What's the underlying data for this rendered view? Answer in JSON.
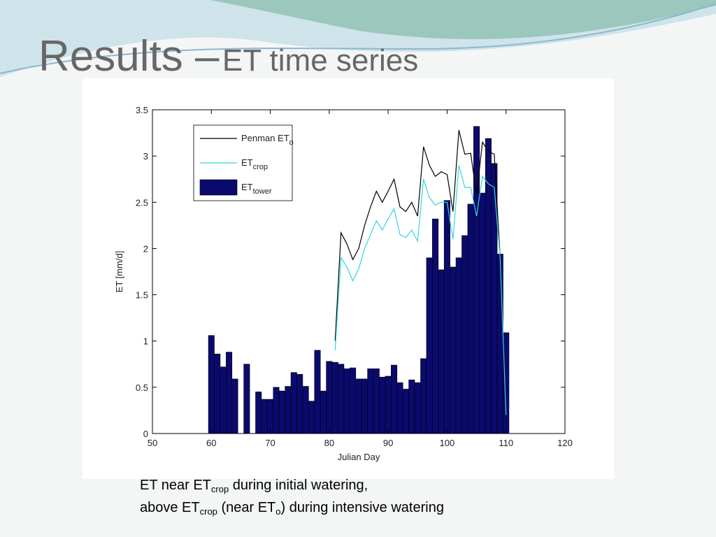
{
  "slide": {
    "title": "Results –",
    "title_rest": "ET time series",
    "caption": [
      [
        "ET near ET",
        "crop",
        " during initial watering,"
      ],
      [
        "above ET",
        "crop",
        " (near ET",
        "o",
        ") during intensive watering"
      ]
    ]
  },
  "chart_data": {
    "type": "bar",
    "xlabel": "Julian Day",
    "ylabel": "ET [mm/d]",
    "xlim": [
      50,
      120
    ],
    "xticks": [
      50,
      60,
      70,
      80,
      90,
      100,
      110,
      120
    ],
    "ylim": [
      0,
      3.5
    ],
    "yticks": [
      0,
      0.5,
      1,
      1.5,
      2,
      2.5,
      3,
      3.5
    ],
    "legend": "upper left",
    "series": [
      {
        "name": "Penman ET",
        "name_sub": "o",
        "type": "line",
        "color": "#000000",
        "x": [
          81,
          82,
          83,
          84,
          85,
          86,
          87,
          88,
          89,
          90,
          91,
          92,
          93,
          94,
          95,
          96,
          97,
          98,
          99,
          100,
          101,
          102,
          103,
          104,
          105,
          106,
          107,
          108,
          109
        ],
        "values": [
          1.0,
          2.17,
          2.05,
          1.88,
          2.0,
          2.25,
          2.45,
          2.62,
          2.5,
          2.62,
          2.75,
          2.45,
          2.4,
          2.5,
          2.35,
          3.1,
          2.9,
          2.78,
          2.83,
          2.8,
          2.4,
          3.28,
          3.02,
          3.03,
          2.58,
          3.15,
          3.05,
          3.02,
          1.9
        ]
      },
      {
        "name": "ET",
        "name_sub": "crop",
        "type": "line",
        "color": "#33d6e0",
        "x": [
          81,
          82,
          83,
          84,
          85,
          86,
          87,
          88,
          89,
          90,
          91,
          92,
          93,
          94,
          95,
          96,
          97,
          98,
          99,
          100,
          101,
          102,
          103,
          104,
          105,
          106,
          107,
          108,
          109,
          110
        ],
        "values": [
          0.9,
          1.9,
          1.8,
          1.65,
          1.78,
          2.0,
          2.15,
          2.3,
          2.2,
          2.32,
          2.43,
          2.15,
          2.12,
          2.2,
          2.08,
          2.75,
          2.55,
          2.47,
          2.5,
          2.5,
          2.1,
          2.9,
          2.66,
          2.66,
          2.35,
          2.78,
          2.7,
          2.66,
          1.9,
          0.2
        ]
      },
      {
        "name": "ET",
        "name_sub": "tower",
        "type": "bar",
        "color": "#0a0a6e",
        "x": [
          60,
          61,
          62,
          63,
          64,
          65,
          66,
          67,
          68,
          69,
          70,
          71,
          72,
          73,
          74,
          75,
          76,
          77,
          78,
          79,
          80,
          81,
          82,
          83,
          84,
          85,
          86,
          87,
          88,
          89,
          90,
          91,
          92,
          93,
          94,
          95,
          96,
          97,
          98,
          99,
          100,
          101,
          102,
          103,
          104,
          105,
          106,
          107,
          108,
          109,
          110
        ],
        "values": [
          1.06,
          0.86,
          0.72,
          0.88,
          0.59,
          0,
          0.75,
          0,
          0.45,
          0.37,
          0.37,
          0.5,
          0.46,
          0.51,
          0.66,
          0.64,
          0.51,
          0.35,
          0.9,
          0.46,
          0.78,
          0.77,
          0.75,
          0.7,
          0.71,
          0.59,
          0.59,
          0.7,
          0.7,
          0.61,
          0.62,
          0.74,
          0.55,
          0.48,
          0.58,
          0.55,
          0.81,
          1.9,
          2.32,
          1.77,
          2.52,
          1.8,
          1.9,
          2.14,
          2.48,
          3.32,
          2.6,
          3.19,
          2.92,
          1.94,
          1.09
        ]
      }
    ]
  }
}
